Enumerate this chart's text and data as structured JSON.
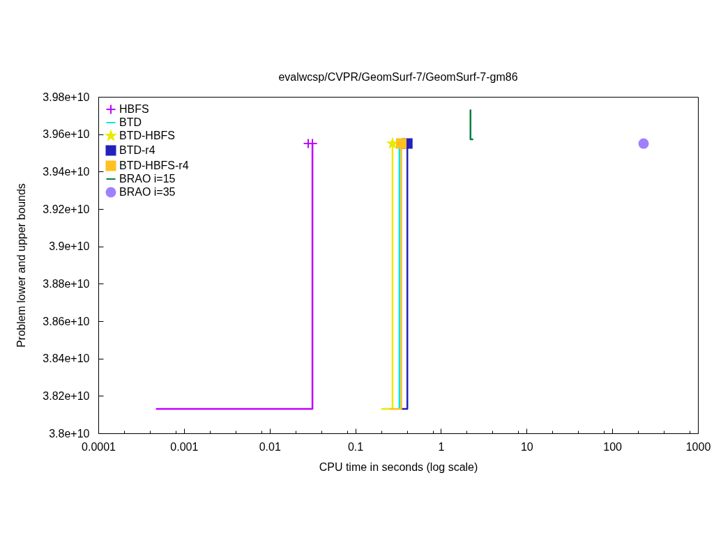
{
  "chart_data": {
    "type": "step",
    "title": "evalwcsp/CVPR/GeomSurf-7/GeomSurf-7-gm86",
    "xlabel": "CPU time in seconds (log scale)",
    "ylabel": "Problem lower and upper bounds",
    "log": "x",
    "xlim": [
      0.0001,
      1000
    ],
    "ylim": [
      38000000000,
      39800000000
    ],
    "xticks": [
      0.0001,
      {
        "value": 0.0002,
        "label": null
      },
      {
        "value": 0.0004,
        "label": null
      },
      {
        "value": 0.0008,
        "label": null
      },
      0.001,
      {
        "value": 0.002,
        "label": null
      },
      {
        "value": 0.004,
        "label": null
      },
      {
        "value": 0.008,
        "label": null
      },
      0.01,
      {
        "value": 0.02,
        "label": null
      },
      {
        "value": 0.04,
        "label": null
      },
      {
        "value": 0.08,
        "label": null
      },
      0.1,
      {
        "value": 0.2,
        "label": null
      },
      {
        "value": 0.4,
        "label": null
      },
      {
        "value": 0.8,
        "label": null
      },
      1,
      {
        "value": 2,
        "label": null
      },
      {
        "value": 4,
        "label": null
      },
      {
        "value": 8,
        "label": null
      },
      10,
      {
        "value": 20,
        "label": null
      },
      {
        "value": 40,
        "label": null
      },
      {
        "value": 80,
        "label": null
      },
      100,
      {
        "value": 200,
        "label": null
      },
      {
        "value": 400,
        "label": null
      },
      {
        "value": 800,
        "label": null
      },
      1000
    ],
    "yticks": [
      {
        "value": 38000000000,
        "label": "3.8e+10"
      },
      {
        "value": 38200000000,
        "label": "3.82e+10"
      },
      {
        "value": 38400000000,
        "label": "3.84e+10"
      },
      {
        "value": 38600000000,
        "label": "3.86e+10"
      },
      {
        "value": 38800000000,
        "label": "3.88e+10"
      },
      {
        "value": 39000000000,
        "label": "3.9e+10"
      },
      {
        "value": 39200000000,
        "label": "3.92e+10"
      },
      {
        "value": 39400000000,
        "label": "3.94e+10"
      },
      {
        "value": 39600000000,
        "label": "3.96e+10"
      },
      {
        "value": 39800000000,
        "label": "3.98e+10"
      }
    ],
    "legend": "top left",
    "series": [
      {
        "name": "HBFS",
        "type": "scatter",
        "marker": "cross",
        "color": "#c000ff",
        "x": [
          0.0282,
          0.0316
        ],
        "values": [
          39550000000,
          39550000000
        ]
      },
      {
        "color": "#c000ff",
        "x": [
          0.00047,
          0.0316
        ],
        "values": [
          38130000000,
          39550000000
        ]
      },
      {
        "name": "BTD",
        "marker": "none",
        "color": "#00e5e5",
        "x": [
          0.327,
          0.327
        ],
        "values": [
          38130000000,
          39550000000
        ]
      },
      {
        "name": "BTD-HBFS",
        "type": "scatter",
        "marker": "star",
        "color": "#eaea00",
        "x": [
          0.272
        ],
        "values": [
          39550000000
        ]
      },
      {
        "color": "#eaea00",
        "x": [
          0.202,
          0.272
        ],
        "values": [
          38130000000,
          39550000000
        ]
      },
      {
        "name": "BTD-r4",
        "type": "scatter",
        "marker": "square",
        "color": "#2222bb",
        "x": [
          0.405
        ],
        "values": [
          39550000000
        ]
      },
      {
        "color": "#2222bb",
        "x": [
          0.344,
          0.405
        ],
        "values": [
          38130000000,
          39550000000
        ]
      },
      {
        "name": "BTD-HBFS-r4",
        "type": "scatter",
        "marker": "square",
        "color": "#ffc020",
        "x": [
          0.344
        ],
        "values": [
          39550000000
        ]
      },
      {
        "color": "#ffc020",
        "x": [
          0.252,
          0.344
        ],
        "values": [
          38130000000,
          39550000000
        ]
      },
      {
        "name": "BRAO i=15",
        "marker": "none",
        "color": "#007f40",
        "x": [
          2.21,
          2.21,
          2.38
        ],
        "values": [
          39732000000,
          39573000000,
          39573000000
        ]
      },
      {
        "name": "BRAO i=35",
        "type": "scatter",
        "marker": "circle",
        "color": "#a080ff",
        "x": [
          232
        ],
        "values": [
          39550000000
        ]
      }
    ]
  }
}
